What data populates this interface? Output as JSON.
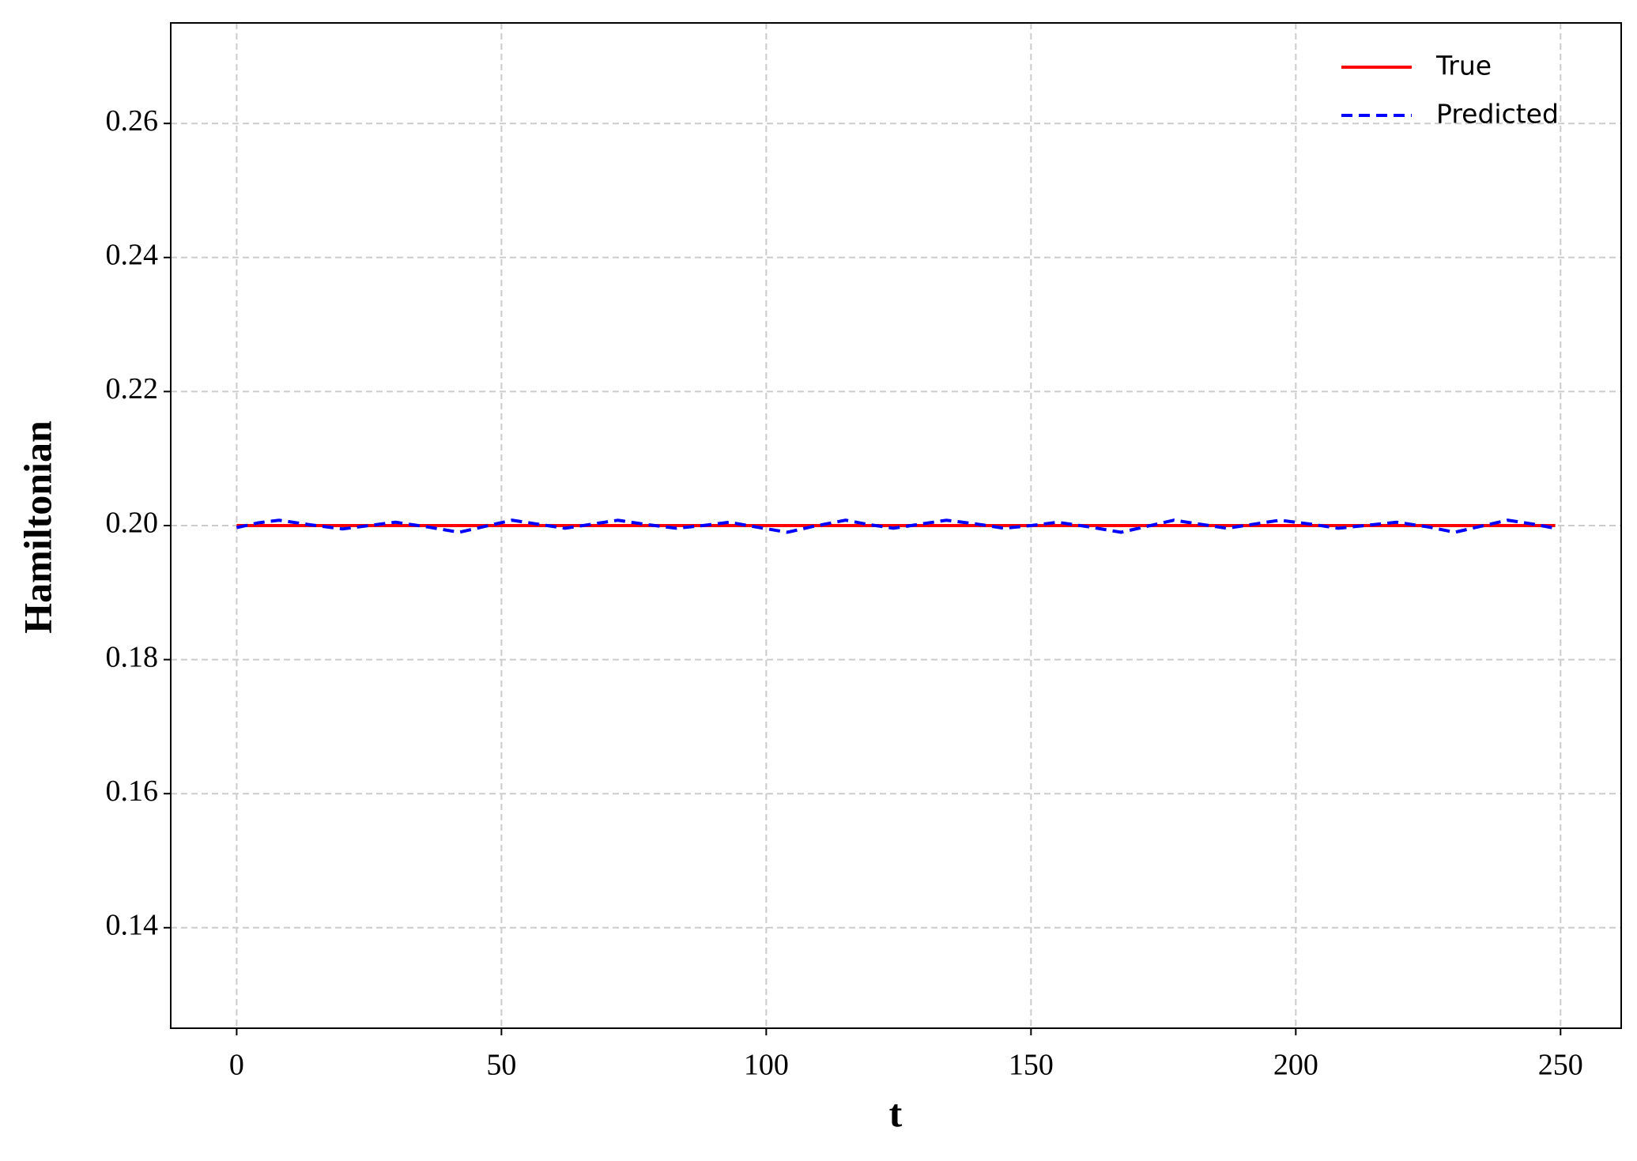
{
  "chart_data": {
    "type": "line",
    "xlabel": "t",
    "ylabel": "Hamiltonian",
    "xlim": [
      -12.45,
      261.45
    ],
    "xticks": [
      0,
      50,
      100,
      150,
      200,
      250
    ],
    "ylim": [
      0.125,
      0.275
    ],
    "yticks": [
      0.14,
      0.16,
      0.18,
      {
        "value": 0.2,
        "label": "0.20"
      },
      0.22,
      0.24,
      0.26
    ],
    "grid": true,
    "legend": "upper right",
    "series": [
      {
        "name": "True",
        "color": "#ff0000",
        "dash": "solid",
        "x": [
          0,
          249
        ],
        "values": [
          0.2,
          0.2
        ]
      },
      {
        "name": "Predicted",
        "color": "#0000ff",
        "dash": "dashed",
        "x": [
          0,
          4,
          8,
          14,
          20,
          25,
          30,
          36,
          42,
          47,
          52,
          57,
          62,
          67,
          72,
          77,
          83,
          88,
          93,
          98,
          104,
          109,
          115,
          119,
          124,
          129,
          134,
          140,
          145,
          150,
          155,
          161,
          167,
          172,
          177,
          182,
          187,
          192,
          197,
          203,
          208,
          213,
          219,
          225,
          230,
          235,
          240,
          245,
          249
        ],
        "values": [
          0.1997,
          0.2004,
          0.2008,
          0.2001,
          0.1995,
          0.2,
          0.2005,
          0.1998,
          0.199,
          0.1999,
          0.2008,
          0.2002,
          0.1996,
          0.2002,
          0.2008,
          0.2002,
          0.1996,
          0.2,
          0.2005,
          0.1998,
          0.199,
          0.1999,
          0.2008,
          0.2002,
          0.1996,
          0.2002,
          0.2008,
          0.2002,
          0.1996,
          0.2,
          0.2005,
          0.1998,
          0.199,
          0.1999,
          0.2008,
          0.2002,
          0.1996,
          0.2002,
          0.2008,
          0.2002,
          0.1996,
          0.2,
          0.2005,
          0.1998,
          0.199,
          0.1999,
          0.2008,
          0.2002,
          0.1996
        ]
      }
    ]
  }
}
